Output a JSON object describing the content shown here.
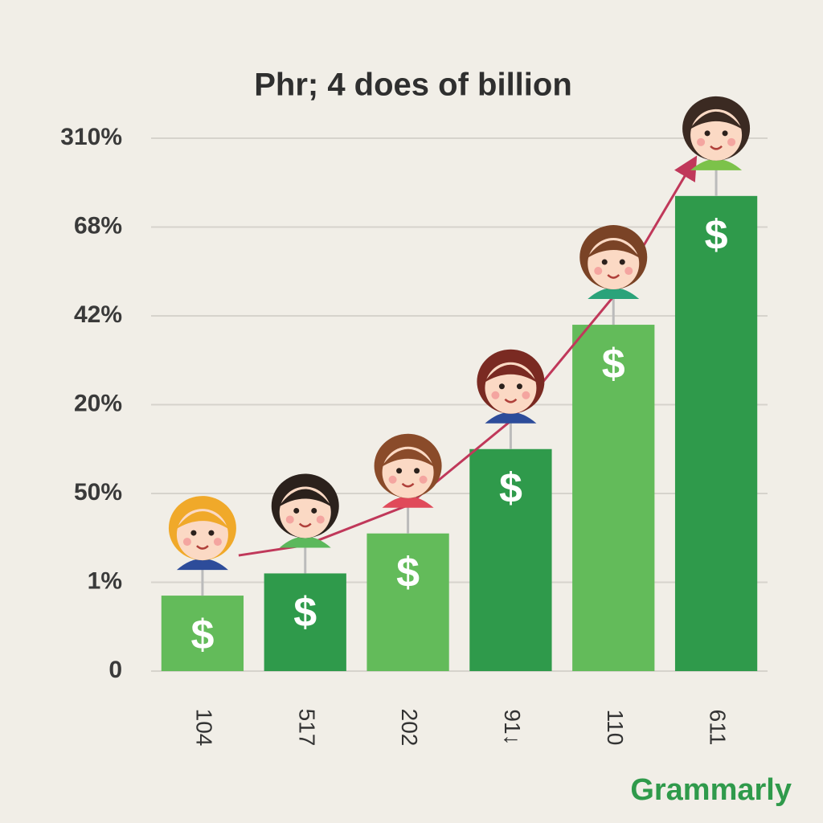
{
  "chart_data": {
    "type": "bar",
    "title": "Phr; 4 does of billion",
    "categories": [
      "104",
      "517",
      "202",
      "91↓",
      "110",
      "611"
    ],
    "values": [
      0.85,
      1.1,
      1.55,
      2.5,
      3.9,
      5.35
    ],
    "colors": [
      "#63bb5a",
      "#2f9a4b",
      "#63bb5a",
      "#2f9a4b",
      "#63bb5a",
      "#2f9a4b"
    ],
    "bar_symbol": "$",
    "y_labels": [
      "0",
      "1%",
      "50%",
      "20%",
      "42%",
      "68%",
      "310%"
    ],
    "ylim": [
      0,
      6
    ],
    "grid": true,
    "watermark": "Grammarly"
  }
}
